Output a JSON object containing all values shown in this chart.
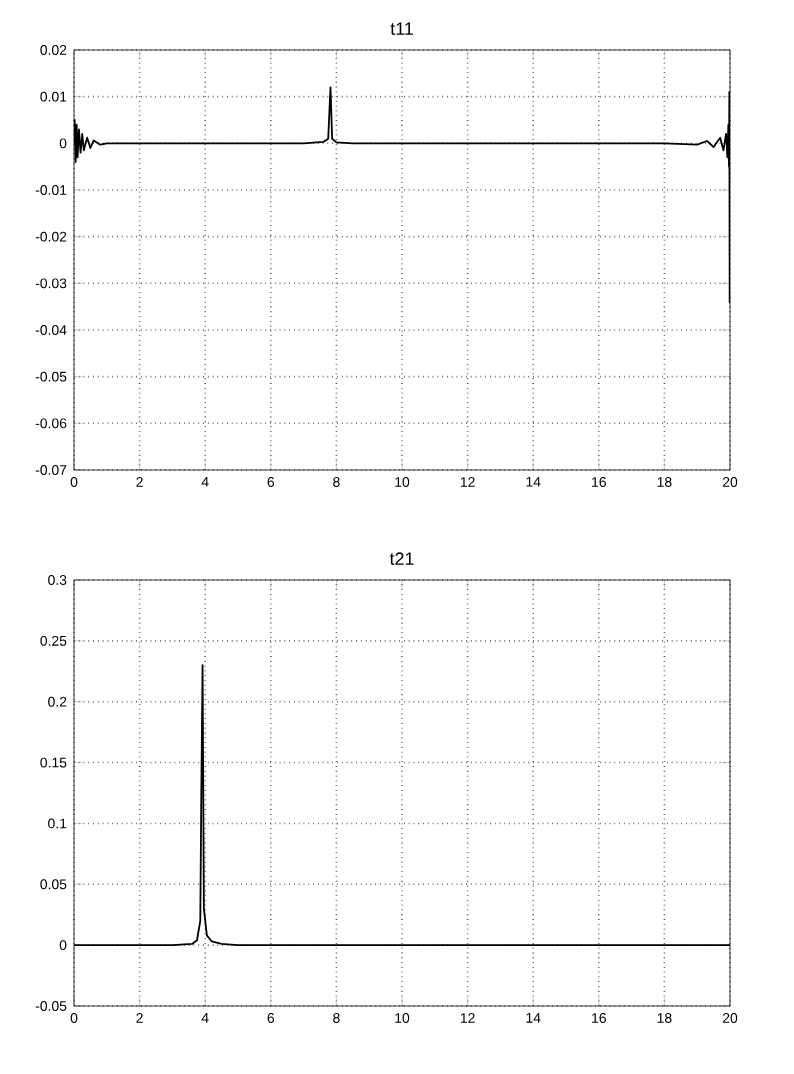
{
  "chart_data": [
    {
      "type": "line",
      "title": "t11",
      "xlim": [
        0,
        20
      ],
      "ylim": [
        -0.07,
        0.02
      ],
      "xticks": [
        0,
        2,
        4,
        6,
        8,
        10,
        12,
        14,
        16,
        18,
        20
      ],
      "yticks": [
        -0.07,
        -0.06,
        -0.05,
        -0.04,
        -0.03,
        -0.02,
        -0.01,
        0,
        0.01,
        0.02
      ],
      "grid": true,
      "series": [
        {
          "color": "#000000",
          "x": [
            0,
            0.02,
            0.05,
            0.08,
            0.11,
            0.15,
            0.2,
            0.25,
            0.3,
            0.4,
            0.5,
            0.6,
            0.8,
            1,
            4,
            7,
            7.6,
            7.75,
            7.82,
            7.87,
            8,
            8.5,
            12,
            18,
            19,
            19.3,
            19.5,
            19.7,
            19.8,
            19.88,
            19.92,
            19.95,
            19.97,
            19.98,
            19.99,
            20
          ],
          "values": [
            0,
            0.005,
            -0.004,
            0.004,
            -0.003,
            0.003,
            -0.002,
            0.002,
            -0.0015,
            0.0012,
            -0.001,
            0.0006,
            -0.0003,
            0,
            0,
            0,
            0.0003,
            0.001,
            0.012,
            0.001,
            0.0002,
            0,
            0,
            0,
            -0.0003,
            0.0005,
            -0.0008,
            0.0012,
            -0.0015,
            0.002,
            -0.003,
            0.004,
            -0.005,
            0.011,
            -0.034,
            0
          ]
        }
      ]
    },
    {
      "type": "line",
      "title": "t21",
      "xlim": [
        0,
        20
      ],
      "ylim": [
        -0.05,
        0.3
      ],
      "xticks": [
        0,
        2,
        4,
        6,
        8,
        10,
        12,
        14,
        16,
        18,
        20
      ],
      "yticks": [
        -0.05,
        0,
        0.05,
        0.1,
        0.15,
        0.2,
        0.25,
        0.3
      ],
      "grid": true,
      "series": [
        {
          "color": "#000000",
          "x": [
            0,
            3,
            3.6,
            3.75,
            3.85,
            3.88,
            3.92,
            3.96,
            4.05,
            4.2,
            4.5,
            5,
            20
          ],
          "values": [
            0,
            0,
            0.001,
            0.004,
            0.02,
            0.12,
            0.23,
            0.03,
            0.008,
            0.003,
            0.001,
            0,
            0
          ]
        }
      ]
    }
  ]
}
